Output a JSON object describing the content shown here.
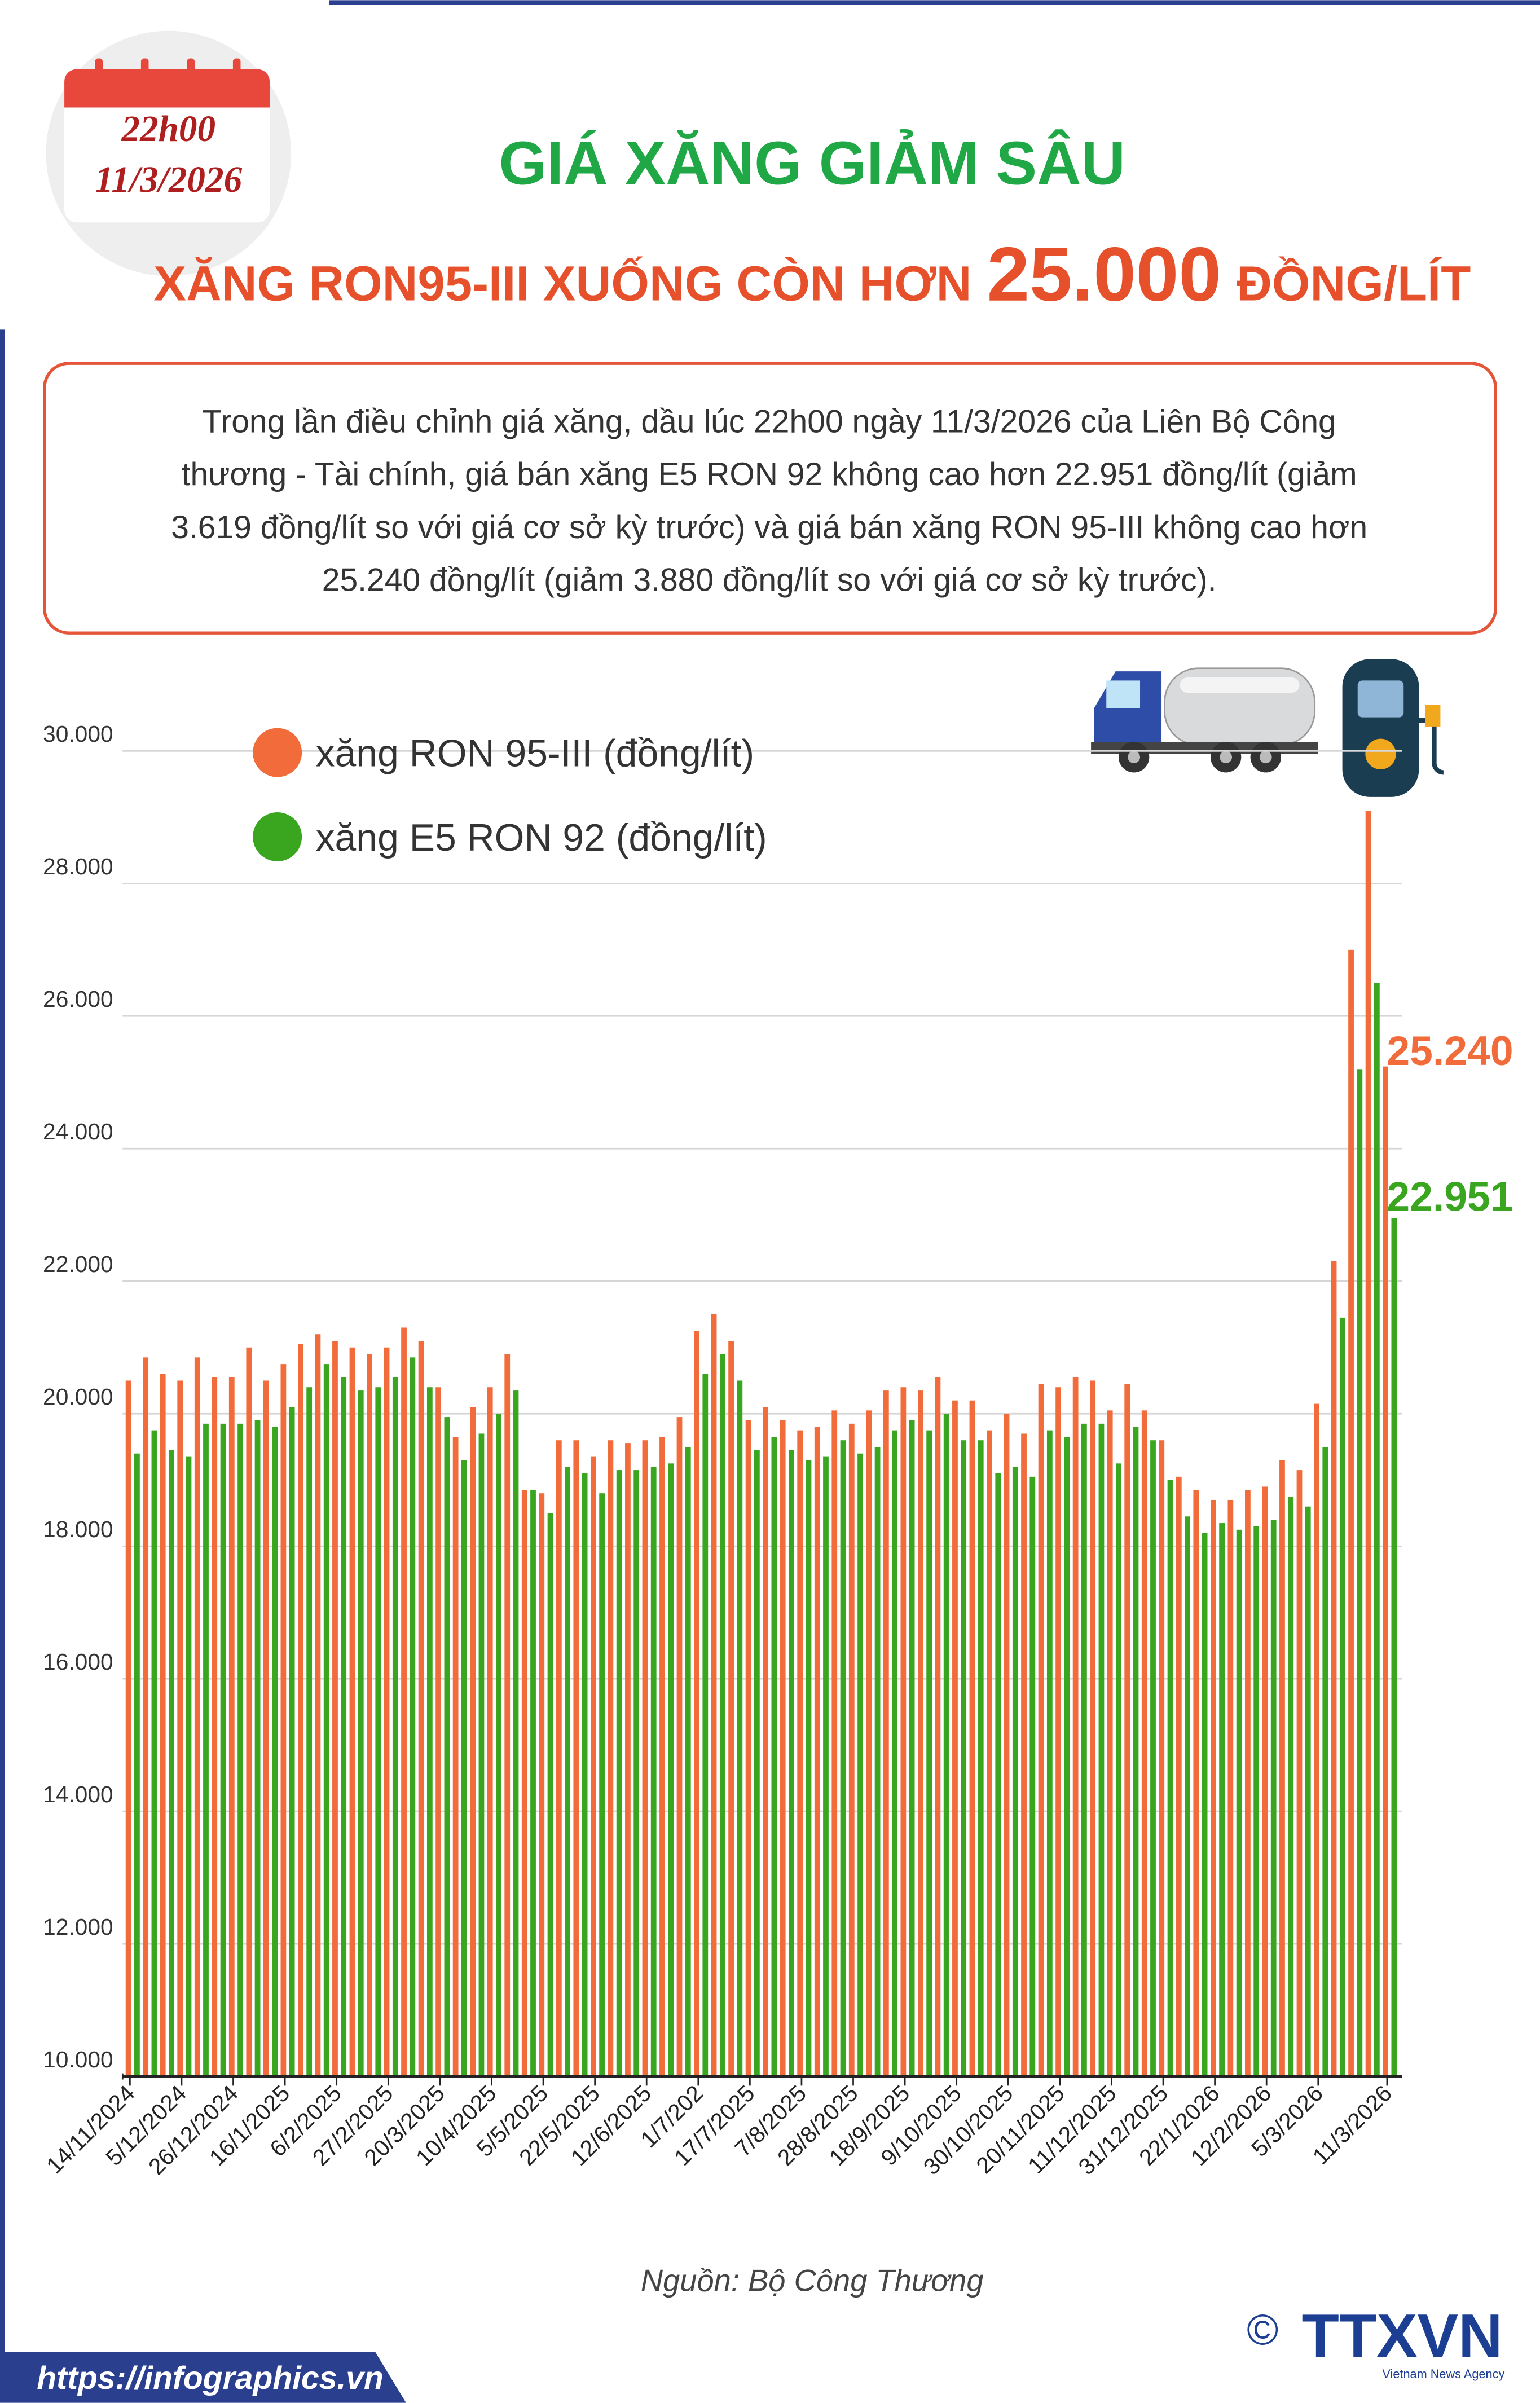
{
  "header": {
    "time": "22h00",
    "date": "11/3/2026",
    "title": "GIÁ XĂNG GIẢM SÂU",
    "subtitle": [
      "XĂNG RON95-III XUỐNG CÒN HƠN",
      "25.000",
      "ĐỒNG/LÍT"
    ]
  },
  "description": [
    "Trong lần điều chỉnh giá xăng, dầu lúc 22h00 ngày 11/3/2026 của Liên Bộ Công",
    "thương - Tài chính, giá bán xăng E5 RON 92 không cao hơn 22.951 đồng/lít (giảm",
    "3.619 đồng/lít so với giá cơ sở kỳ trước) và giá bán xăng RON 95-III không cao hơn",
    "25.240 đồng/lít (giảm 3.880 đồng/lít so với giá cơ sở kỳ trước)."
  ],
  "chart_data": {
    "type": "bar",
    "categories": [
      "14/11/2024",
      null,
      null,
      "5/12/2024",
      null,
      null,
      "26/12/2024",
      null,
      null,
      "16/1/2025",
      null,
      null,
      "6/2/2025",
      null,
      null,
      "27/2/2025",
      null,
      null,
      "20/3/2025",
      null,
      null,
      "10/4/2025",
      null,
      null,
      "5/5/2025",
      null,
      null,
      "22/5/2025",
      null,
      null,
      "12/6/2025",
      null,
      null,
      "1/7/202",
      null,
      null,
      "17/7/2025",
      null,
      null,
      "7/8/2025",
      null,
      null,
      "28/8/2025",
      null,
      null,
      "18/9/2025",
      null,
      null,
      "9/10/2025",
      null,
      null,
      "30/10/2025",
      null,
      null,
      "20/11/2025",
      null,
      null,
      "11/12/2025",
      null,
      null,
      "31/12/2025",
      null,
      null,
      "22/1/2026",
      null,
      null,
      "12/2/2026",
      null,
      null,
      "5/3/2026",
      null,
      null,
      null,
      "11/3/2026"
    ],
    "series": [
      {
        "name": "xăng RON 95-III (đồng/lít)",
        "color": "#f26b3a",
        "values": [
          20500,
          20850,
          20600,
          20500,
          20850,
          20550,
          20550,
          21000,
          20500,
          20750,
          21050,
          21200,
          21100,
          21000,
          20900,
          21000,
          21300,
          21100,
          20400,
          19650,
          20100,
          20400,
          20900,
          18850,
          18800,
          19600,
          19600,
          19350,
          19600,
          19550,
          19600,
          19650,
          19950,
          21250,
          21500,
          21100,
          19900,
          20100,
          19900,
          19750,
          19800,
          20050,
          19850,
          20050,
          20350,
          20400,
          20350,
          20550,
          20200,
          20200,
          19750,
          20000,
          19700,
          20450,
          20400,
          20550,
          20500,
          20050,
          20450,
          20050,
          19600,
          19050,
          18850,
          18700,
          18700,
          18850,
          18900,
          19300,
          19150,
          20150,
          22300,
          27000,
          29100,
          25240
        ],
        "value_labels": [
          null,
          null,
          null,
          null,
          null,
          null,
          null,
          null,
          null,
          null,
          null,
          null,
          null,
          null,
          null,
          null,
          null,
          null,
          null,
          null,
          null,
          null,
          null,
          null,
          null,
          null,
          null,
          null,
          null,
          null,
          null,
          null,
          null,
          null,
          null,
          null,
          null,
          null,
          null,
          null,
          null,
          null,
          null,
          null,
          null,
          null,
          null,
          null,
          null,
          null,
          null,
          null,
          null,
          null,
          null,
          null,
          null,
          null,
          null,
          null,
          null,
          null,
          null,
          null,
          null,
          null,
          null,
          null,
          null,
          null,
          null,
          null,
          null,
          "25.240"
        ]
      },
      {
        "name": "xăng E5 RON 92 (đồng/lít)",
        "color": "#3aa51f",
        "values": [
          19400,
          19750,
          19450,
          19350,
          19850,
          19850,
          19850,
          19900,
          19800,
          20100,
          20400,
          20750,
          20550,
          20350,
          20400,
          20550,
          20850,
          20400,
          19950,
          19300,
          19700,
          20000,
          20350,
          18850,
          18500,
          19200,
          19100,
          18800,
          19150,
          19150,
          19200,
          19250,
          19500,
          20600,
          20900,
          20500,
          19450,
          19650,
          19450,
          19300,
          19350,
          19600,
          19400,
          19500,
          19750,
          19900,
          19750,
          20000,
          19600,
          19600,
          19100,
          19200,
          19050,
          19750,
          19650,
          19850,
          19850,
          19250,
          19800,
          19600,
          19000,
          18450,
          18200,
          18350,
          18250,
          18300,
          18400,
          18750,
          18600,
          19500,
          21450,
          25200,
          26500,
          22951
        ],
        "value_labels": [
          null,
          null,
          null,
          null,
          null,
          null,
          null,
          null,
          null,
          null,
          null,
          null,
          null,
          null,
          null,
          null,
          null,
          null,
          null,
          null,
          null,
          null,
          null,
          null,
          null,
          null,
          null,
          null,
          null,
          null,
          null,
          null,
          null,
          null,
          null,
          null,
          null,
          null,
          null,
          null,
          null,
          null,
          null,
          null,
          null,
          null,
          null,
          null,
          null,
          null,
          null,
          null,
          null,
          null,
          null,
          null,
          null,
          null,
          null,
          null,
          null,
          null,
          null,
          null,
          null,
          null,
          null,
          null,
          null,
          null,
          null,
          null,
          null,
          "22.951"
        ]
      }
    ],
    "ylim": [
      10000,
      30000
    ],
    "yticks": [
      {
        "value": 10000,
        "label": "10.000"
      },
      {
        "value": 12000,
        "label": "12.000"
      },
      {
        "value": 14000,
        "label": "14.000"
      },
      {
        "value": 16000,
        "label": "16.000"
      },
      {
        "value": 18000,
        "label": "18.000"
      },
      {
        "value": 20000,
        "label": "20.000"
      },
      {
        "value": 22000,
        "label": "22.000"
      },
      {
        "value": 24000,
        "label": "24.000"
      },
      {
        "value": 26000,
        "label": "26.000"
      },
      {
        "value": 28000,
        "label": "28.000"
      },
      {
        "value": 30000,
        "label": "30.000"
      }
    ],
    "grid": true,
    "legend": "top-left"
  },
  "source": "Nguồn: Bộ Công Thương",
  "footer": {
    "url": "https://infographics.vn",
    "copyright": "©",
    "logo": "TTXVN",
    "agency": "Vietnam News Agency"
  }
}
